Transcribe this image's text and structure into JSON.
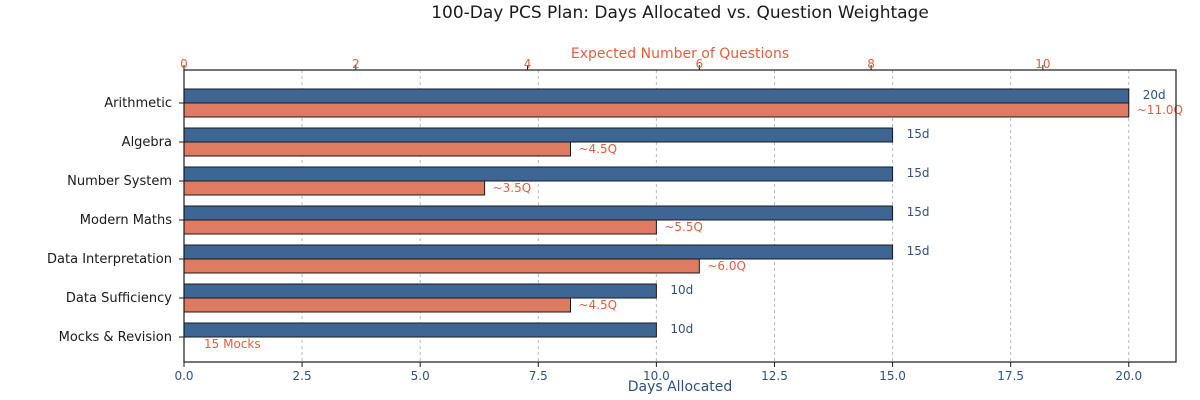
{
  "colors": {
    "days": "#3d6695",
    "questions": "#e07b63",
    "days_text": "#2c5283",
    "questions_text": "#e2603f",
    "axis": "#1a1a1a"
  },
  "chart_data": {
    "type": "bar",
    "orientation": "horizontal",
    "title": "100-Day PCS Plan: Days Allocated vs. Question Weightage",
    "xlabel": "Days Allocated",
    "x2label": "Expected Number of Questions",
    "xlim": [
      0,
      21
    ],
    "x2lim": [
      0,
      11.55
    ],
    "xticks": [
      "0.0",
      "2.5",
      "5.0",
      "7.5",
      "10.0",
      "12.5",
      "15.0",
      "17.5",
      "20.0"
    ],
    "xtick_values": [
      0,
      2.5,
      5,
      7.5,
      10,
      12.5,
      15,
      17.5,
      20
    ],
    "x2ticks": [
      "0",
      "2",
      "4",
      "6",
      "8",
      "10"
    ],
    "x2tick_values": [
      0,
      2,
      4,
      6,
      8,
      10
    ],
    "grid": "vertical dashed",
    "categories": [
      "Arithmetic",
      "Algebra",
      "Number System",
      "Modern Maths",
      "Data Interpretation",
      "Data Sufficiency",
      "Mocks & Revision"
    ],
    "series": [
      {
        "name": "Days Allocated",
        "values": [
          20,
          15,
          15,
          15,
          15,
          10,
          10
        ],
        "labels": [
          "20d",
          "15d",
          "15d",
          "15d",
          "15d",
          "10d",
          "10d"
        ]
      },
      {
        "name": "Expected Number of Questions",
        "values": [
          11.0,
          4.5,
          3.5,
          5.5,
          6.0,
          4.5,
          0
        ],
        "labels": [
          "~11.0Q",
          "~4.5Q",
          "~3.5Q",
          "~5.5Q",
          "~6.0Q",
          "~4.5Q",
          "15 Mocks"
        ]
      }
    ]
  }
}
